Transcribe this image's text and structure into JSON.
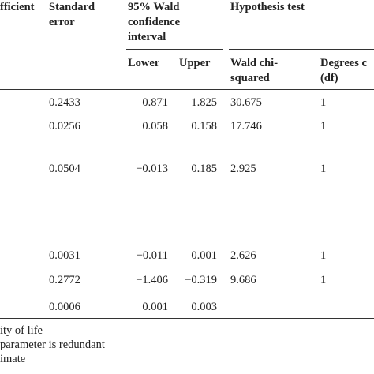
{
  "header": {
    "columns": [
      [
        "fficient"
      ],
      [
        "Standard",
        "error"
      ],
      [
        "95% Wald",
        "confidence",
        "interval"
      ],
      [
        "Hypothesis test"
      ]
    ],
    "subcolumns": [
      [
        "Lower"
      ],
      [
        "Upper"
      ],
      [
        "Wald chi-",
        "squared"
      ],
      [
        "Degrees c",
        "(df)"
      ]
    ]
  },
  "table": {
    "rows": [
      [
        "0.2433",
        "0.871",
        "1.825",
        "30.675",
        "1"
      ],
      [
        "0.0256",
        "0.058",
        "0.158",
        "17.746",
        "1"
      ],
      [
        "0.0504",
        "−0.013",
        "0.185",
        "2.925",
        "1"
      ],
      [
        "0.0031",
        "−0.011",
        "0.001",
        "2.626",
        "1"
      ],
      [
        "0.2772",
        "−1.406",
        "−0.319",
        "9.686",
        "1"
      ],
      [
        "0.0006",
        "0.001",
        "0.003"
      ]
    ]
  },
  "footnotes": [
    "ity of life",
    "parameter is redundant",
    "imate"
  ]
}
